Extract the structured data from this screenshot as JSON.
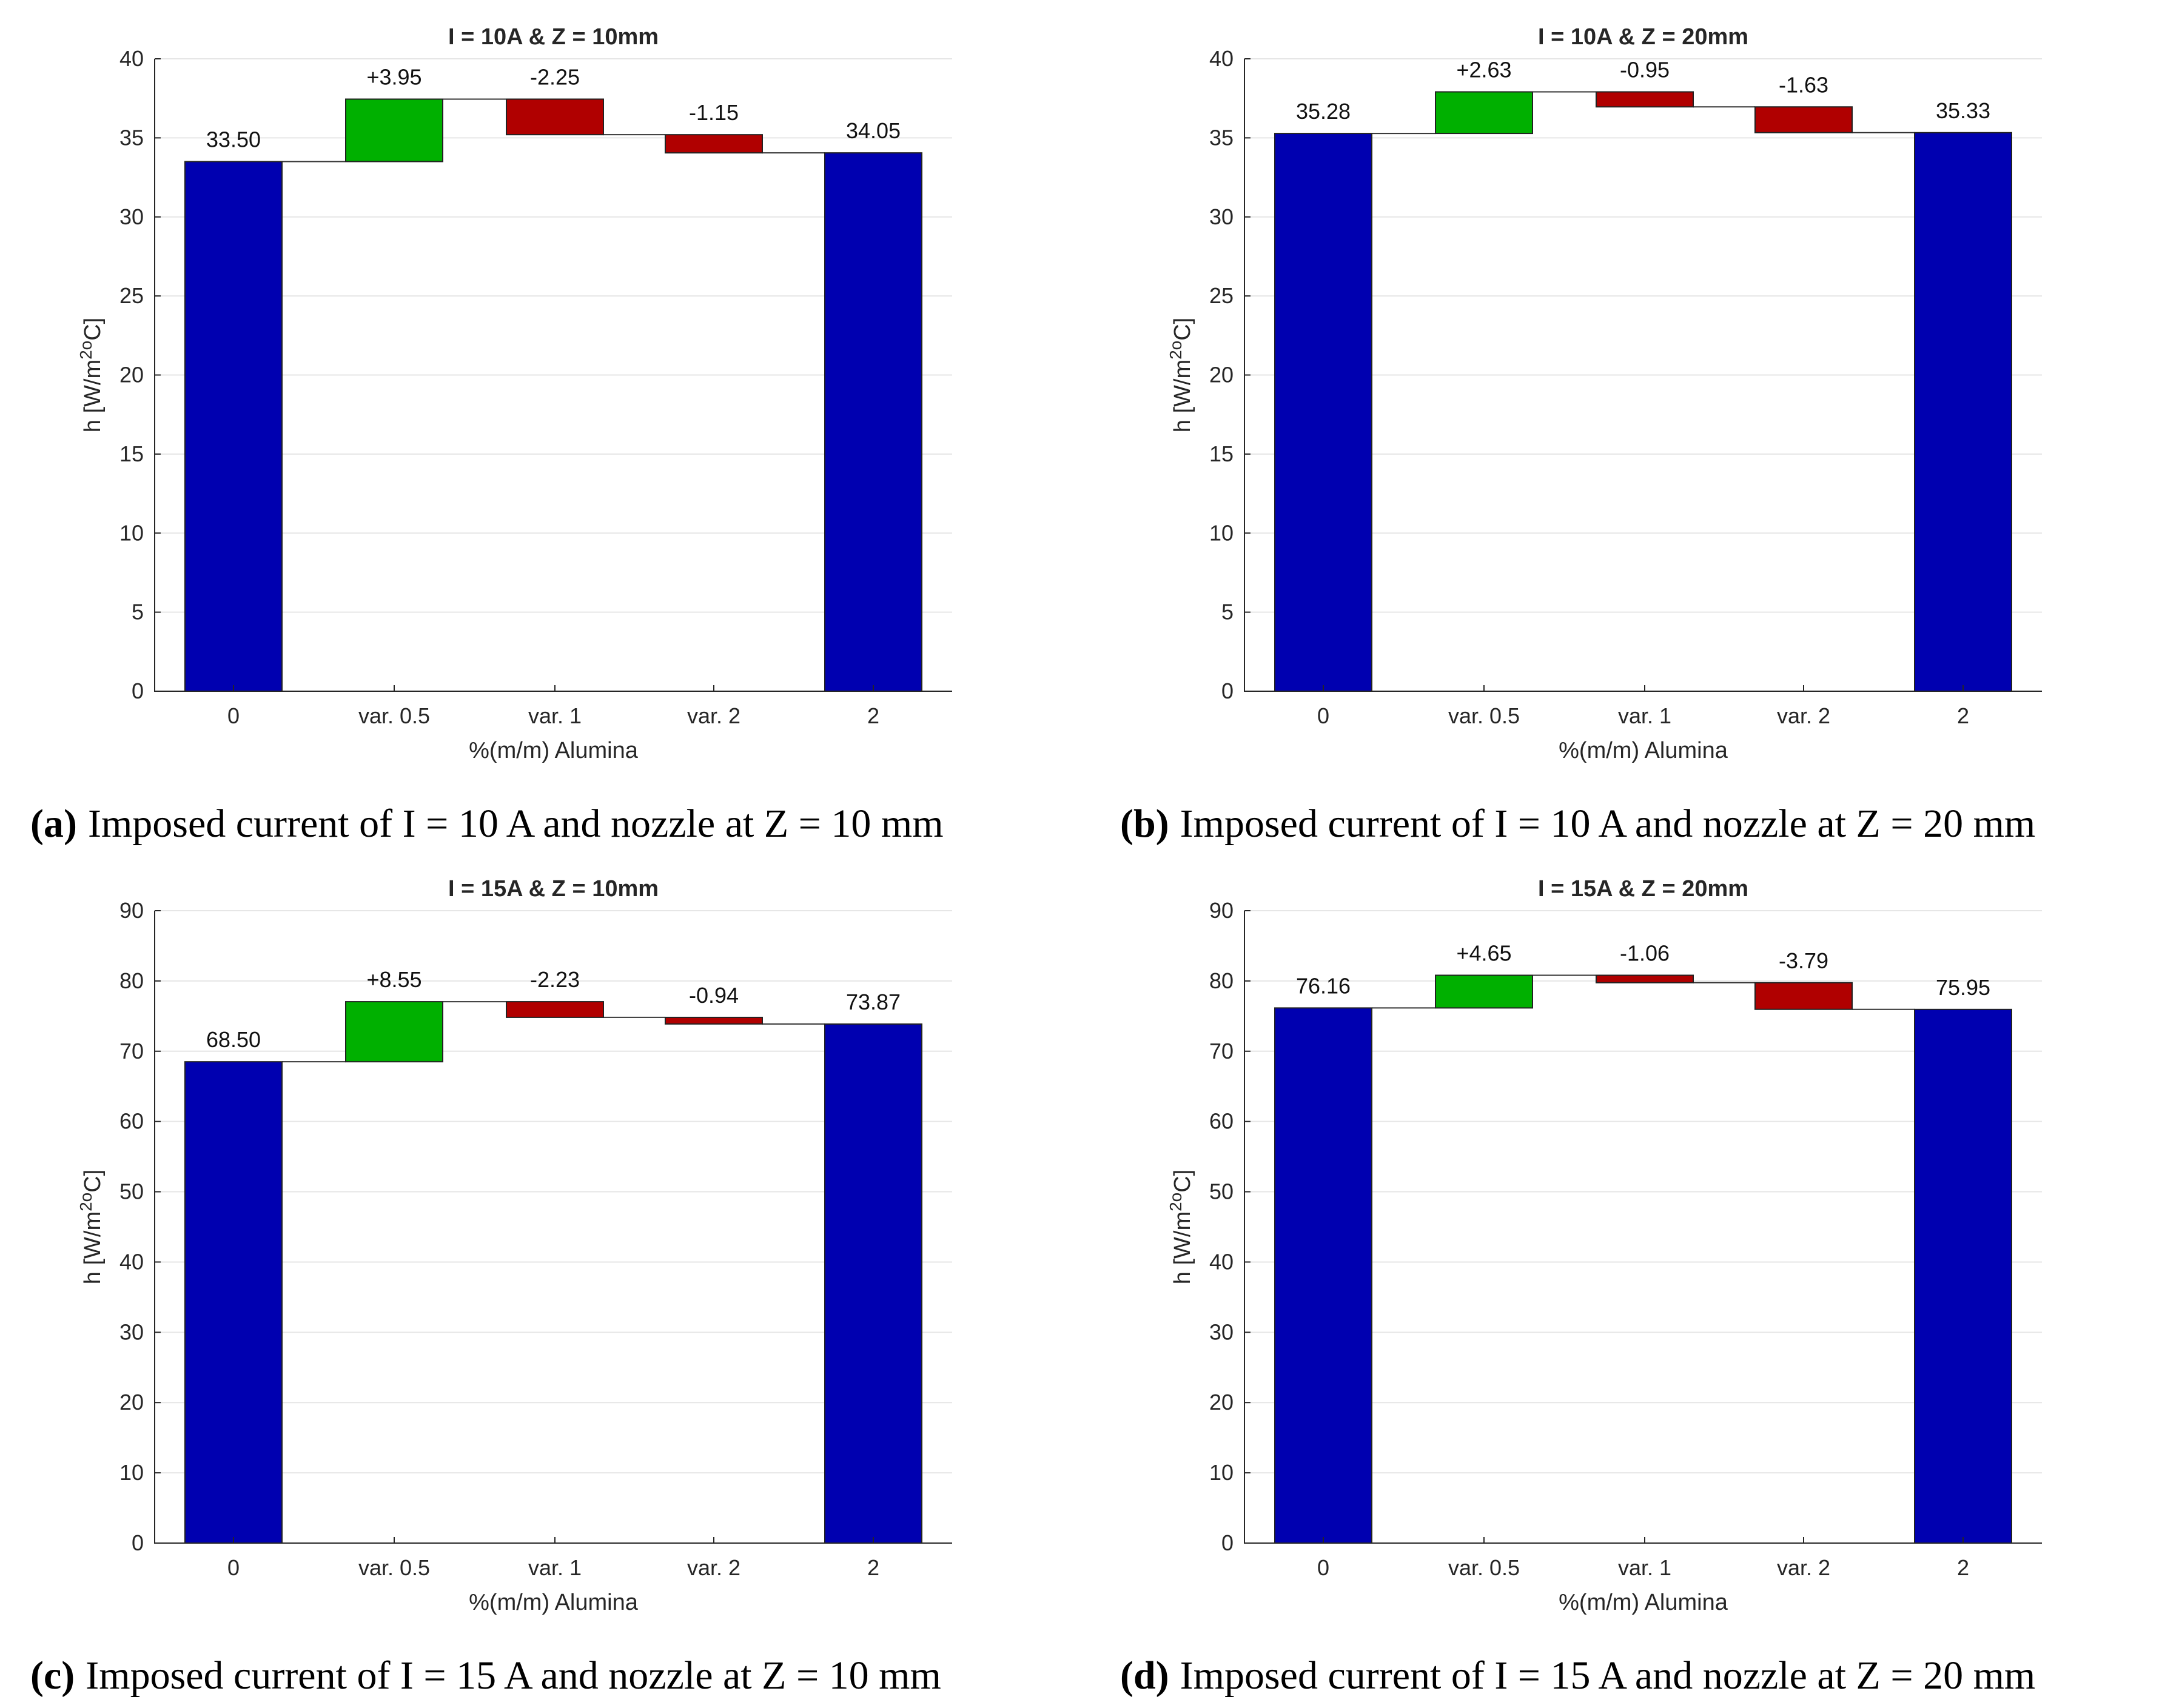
{
  "figure": {
    "colors": {
      "base": "#0000b0",
      "increase": "#00b000",
      "decrease": "#b00000"
    }
  },
  "chart_data": [
    {
      "type": "bar",
      "subtype": "waterfall",
      "title": "I = 10A & Z = 10mm",
      "xlabel": "%(m/m) Alumina",
      "ylabel": "h [W/m2oC]",
      "ylabel_parts": {
        "main": "h [W/m",
        "sup1": "2",
        "sup2": "o",
        "tail": "C]"
      },
      "ylim": [
        0,
        40
      ],
      "yticks": [
        0,
        5,
        10,
        15,
        20,
        25,
        30,
        35,
        40
      ],
      "ytick_labels": [
        "0",
        "5",
        "10",
        "15",
        "20",
        "25",
        "30",
        "35",
        "40"
      ],
      "categories": [
        "0",
        "var. 0.5",
        "var. 1",
        "var. 2",
        "2"
      ],
      "values": [
        33.5,
        3.95,
        -2.25,
        -1.15,
        34.05
      ],
      "bar_kinds": [
        "total",
        "delta",
        "delta",
        "delta",
        "total"
      ],
      "data_labels": [
        "33.50",
        "+3.95",
        "-2.25",
        "-1.15",
        "34.05"
      ],
      "grid": true,
      "caption_letter": "(a)",
      "caption": "Imposed current of I = 10 A and nozzle at Z = 10 mm"
    },
    {
      "type": "bar",
      "subtype": "waterfall",
      "title": "I = 10A & Z = 20mm",
      "xlabel": "%(m/m) Alumina",
      "ylabel": "h [W/m2oC]",
      "ylabel_parts": {
        "main": "h [W/m",
        "sup1": "2",
        "sup2": "o",
        "tail": "C]"
      },
      "ylim": [
        0,
        40
      ],
      "yticks": [
        0,
        5,
        10,
        15,
        20,
        25,
        30,
        35,
        40
      ],
      "ytick_labels": [
        "0",
        "5",
        "10",
        "15",
        "20",
        "25",
        "30",
        "35",
        "40"
      ],
      "categories": [
        "0",
        "var. 0.5",
        "var. 1",
        "var. 2",
        "2"
      ],
      "values": [
        35.28,
        2.63,
        -0.95,
        -1.63,
        35.33
      ],
      "bar_kinds": [
        "total",
        "delta",
        "delta",
        "delta",
        "total"
      ],
      "data_labels": [
        "35.28",
        "+2.63",
        "-0.95",
        "-1.63",
        "35.33"
      ],
      "grid": true,
      "caption_letter": "(b)",
      "caption": "Imposed current of I = 10 A and nozzle at Z = 20 mm"
    },
    {
      "type": "bar",
      "subtype": "waterfall",
      "title": "I = 15A & Z = 10mm",
      "xlabel": "%(m/m) Alumina",
      "ylabel": "h [W/m2oC]",
      "ylabel_parts": {
        "main": "h [W/m",
        "sup1": "2",
        "sup2": "o",
        "tail": "C]"
      },
      "ylim": [
        0,
        90
      ],
      "yticks": [
        0,
        10,
        20,
        30,
        40,
        50,
        60,
        70,
        80,
        90
      ],
      "ytick_labels": [
        "0",
        "10",
        "20",
        "30",
        "40",
        "50",
        "60",
        "70",
        "80",
        "90"
      ],
      "categories": [
        "0",
        "var. 0.5",
        "var. 1",
        "var. 2",
        "2"
      ],
      "values": [
        68.5,
        8.55,
        -2.23,
        -0.94,
        73.87
      ],
      "bar_kinds": [
        "total",
        "delta",
        "delta",
        "delta",
        "total"
      ],
      "data_labels": [
        "68.50",
        "+8.55",
        "-2.23",
        "-0.94",
        "73.87"
      ],
      "grid": true,
      "caption_letter": "(c)",
      "caption": "Imposed current of I = 15 A and nozzle at Z = 10 mm"
    },
    {
      "type": "bar",
      "subtype": "waterfall",
      "title": "I = 15A & Z = 20mm",
      "xlabel": "%(m/m) Alumina",
      "ylabel": "h [W/m2oC]",
      "ylabel_parts": {
        "main": "h [W/m",
        "sup1": "2",
        "sup2": "o",
        "tail": "C]"
      },
      "ylim": [
        0,
        90
      ],
      "yticks": [
        0,
        10,
        20,
        30,
        40,
        50,
        60,
        70,
        80,
        90
      ],
      "ytick_labels": [
        "0",
        "10",
        "20",
        "30",
        "40",
        "50",
        "60",
        "70",
        "80",
        "90"
      ],
      "categories": [
        "0",
        "var. 0.5",
        "var. 1",
        "var. 2",
        "2"
      ],
      "values": [
        76.16,
        4.65,
        -1.06,
        -3.79,
        75.95
      ],
      "bar_kinds": [
        "total",
        "delta",
        "delta",
        "delta",
        "total"
      ],
      "data_labels": [
        "76.16",
        "+4.65",
        "-1.06",
        "-3.79",
        "75.95"
      ],
      "grid": true,
      "caption_letter": "(d)",
      "caption": "Imposed current of I = 15 A and nozzle at Z = 20 mm"
    }
  ]
}
